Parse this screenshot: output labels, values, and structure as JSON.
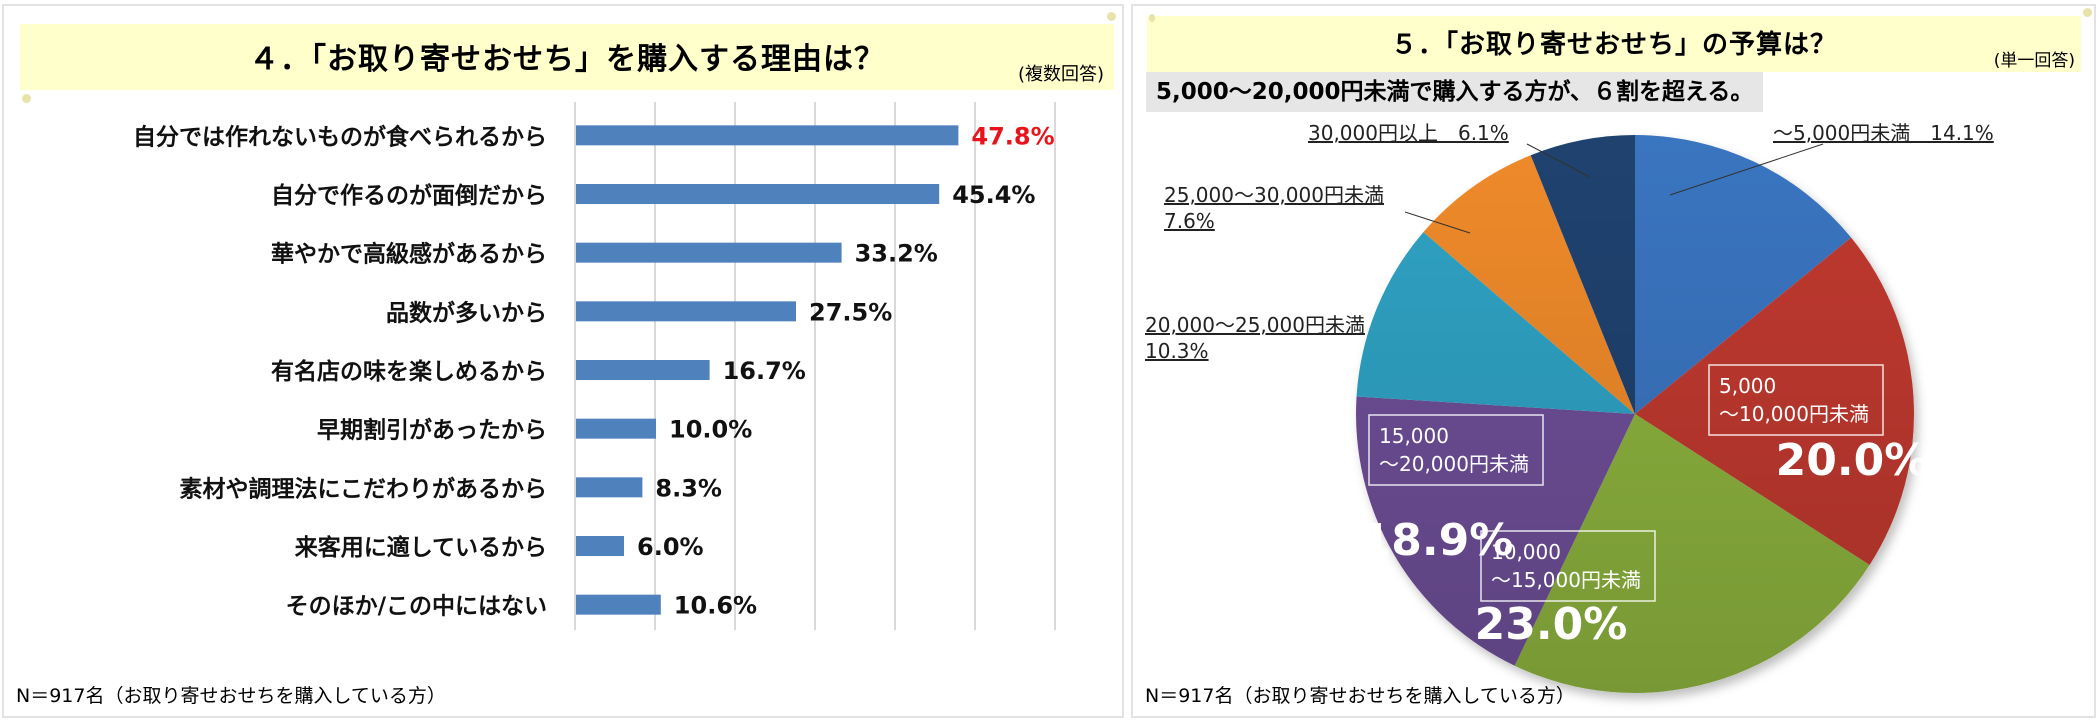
{
  "left_panel": {
    "title": "４．「お取り寄せおせち」を購入する理由は？",
    "note": "(複数回答)",
    "footnote": "N＝917名（お取り寄せおせちを購入している方）"
  },
  "right_panel": {
    "title": "５．「お取り寄せおせち」の予算は？",
    "note": "(単一回答)",
    "headline": "5,000～20,000円未満で購入する方が、６割を超える。",
    "footnote": "N＝917名（お取り寄せおせちを購入している方）"
  },
  "colors": {
    "bar": "#4f81bd",
    "highlight_label": "#e8141b",
    "grid": "#d9d9d9",
    "axis_tick": "#7f7f7f",
    "banner": "#ffffcc"
  },
  "chart_data": [
    {
      "type": "bar",
      "orientation": "horizontal",
      "title": "４．「お取り寄せおせち」を購入する理由は？",
      "categories": [
        "自分では作れないものが食べられるから",
        "自分で作るのが面倒だから",
        "華やかで高級感があるから",
        "品数が多いから",
        "有名店の味を楽しめるから",
        "早期割引があったから",
        "素材や調理法にこだわりがあるから",
        "来客用に適しているから",
        "そのほか/この中にはない"
      ],
      "values": [
        47.8,
        45.4,
        33.2,
        27.5,
        16.7,
        10.0,
        8.3,
        6.0,
        10.6
      ],
      "value_labels": [
        "47.8%",
        "45.4%",
        "33.2%",
        "27.5%",
        "16.7%",
        "10.0%",
        "8.3%",
        "6.0%",
        "10.6%"
      ],
      "highlight_index": 0,
      "xlim": [
        0,
        60
      ],
      "xticks": [
        "0.0%",
        "10.0%",
        "20.0%",
        "30.0%",
        "40.0%",
        "50.0%",
        "60.0%"
      ],
      "xlabel": "",
      "ylabel": "",
      "grid": "vertical"
    },
    {
      "type": "pie",
      "title": "５．「お取り寄せおせち」の予算は？",
      "start": "12 o'clock, clockwise",
      "slices": [
        {
          "label": "～5,000円未満",
          "label_lines": [
            "～5,000円未満　14.1%"
          ],
          "value": 14.1,
          "value_label": "14.1%",
          "color": "#3a75c0",
          "label_style": "outside"
        },
        {
          "label": "5,000～10,000円未満",
          "label_lines": [
            "5,000",
            "～10,000円未満"
          ],
          "value": 20.0,
          "value_label": "20.0%",
          "color": "#c0392f",
          "label_style": "inside"
        },
        {
          "label": "10,000～15,000円未満",
          "label_lines": [
            "10,000",
            "～15,000円未満"
          ],
          "value": 23.0,
          "value_label": "23.0%",
          "color": "#8db33e",
          "label_style": "inside"
        },
        {
          "label": "15,000～20,000円未満",
          "label_lines": [
            "15,000",
            "～20,000円未満"
          ],
          "value": 18.9,
          "value_label": "18.9%",
          "color": "#6e4f98",
          "label_style": "inside"
        },
        {
          "label": "20,000～25,000円未満",
          "label_lines": [
            "20,000～25,000円未満",
            "10.3%"
          ],
          "value": 10.3,
          "value_label": "10.3%",
          "color": "#2fa2c4",
          "label_style": "outside"
        },
        {
          "label": "25,000～30,000円未満",
          "label_lines": [
            "25,000～30,000円未満",
            "7.6%"
          ],
          "value": 7.6,
          "value_label": "7.6%",
          "color": "#ef8a2a",
          "label_style": "outside"
        },
        {
          "label": "30,000円以上",
          "label_lines": [
            "30,000円以上　6.1%"
          ],
          "value": 6.1,
          "value_label": "6.1%",
          "color": "#1f426f",
          "label_style": "outside"
        }
      ]
    }
  ]
}
